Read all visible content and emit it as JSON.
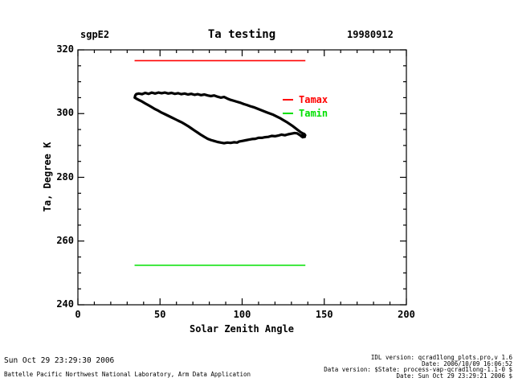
{
  "header": {
    "site": "sgpE2",
    "title": "Ta testing",
    "date": "19980912"
  },
  "legend": {
    "items": [
      {
        "label": "Tamax",
        "color": "#ff0000"
      },
      {
        "label": "Tamin",
        "color": "#00e000"
      }
    ]
  },
  "chart_data": {
    "type": "line",
    "title": "Ta testing",
    "xlabel": "Solar Zenith Angle",
    "ylabel": "Ta, Degree K",
    "xlim": [
      0,
      200
    ],
    "ylim": [
      240,
      320
    ],
    "x_axis": {
      "min": 0,
      "max": 200,
      "major_step": 50,
      "minor_step": 10
    },
    "y_axis": {
      "min": 240,
      "max": 320,
      "major_step": 20,
      "minor_step": 5
    },
    "grid": false,
    "legend_position": "inside-right",
    "series": [
      {
        "name": "Ta",
        "color": "#000000",
        "line_width": 3.2,
        "points": [
          [
            34.6,
            305.0
          ],
          [
            34.9,
            305.7
          ],
          [
            35.5,
            306.1
          ],
          [
            37,
            306.3
          ],
          [
            39,
            306.1
          ],
          [
            41,
            306.5
          ],
          [
            43,
            306.2
          ],
          [
            45,
            306.6
          ],
          [
            47,
            306.3
          ],
          [
            49,
            306.6
          ],
          [
            51,
            306.4
          ],
          [
            53,
            306.6
          ],
          [
            55,
            306.3
          ],
          [
            57,
            306.5
          ],
          [
            59,
            306.2
          ],
          [
            61,
            306.4
          ],
          [
            63,
            306.1
          ],
          [
            65,
            306.3
          ],
          [
            67,
            306.0
          ],
          [
            69,
            306.2
          ],
          [
            71,
            305.9
          ],
          [
            73,
            306.1
          ],
          [
            75,
            305.8
          ],
          [
            77,
            306.0
          ],
          [
            79,
            305.7
          ],
          [
            81,
            305.5
          ],
          [
            83,
            305.7
          ],
          [
            85,
            305.3
          ],
          [
            87,
            305.0
          ],
          [
            89,
            305.2
          ],
          [
            91,
            304.7
          ],
          [
            93,
            304.3
          ],
          [
            95,
            304.0
          ],
          [
            97,
            303.7
          ],
          [
            99,
            303.4
          ],
          [
            101,
            303.0
          ],
          [
            103,
            302.7
          ],
          [
            105,
            302.3
          ],
          [
            107,
            302.0
          ],
          [
            109,
            301.6
          ],
          [
            111,
            301.2
          ],
          [
            113,
            300.8
          ],
          [
            115,
            300.4
          ],
          [
            117,
            300.0
          ],
          [
            119,
            299.6
          ],
          [
            121,
            299.1
          ],
          [
            123,
            298.6
          ],
          [
            125,
            298.0
          ],
          [
            127,
            297.4
          ],
          [
            129,
            296.7
          ],
          [
            131,
            296.0
          ],
          [
            133,
            295.2
          ],
          [
            134.5,
            294.6
          ],
          [
            135.8,
            294.1
          ],
          [
            136.8,
            293.8
          ],
          [
            137.8,
            293.6
          ],
          [
            138.4,
            293.2
          ],
          [
            137.9,
            292.8
          ],
          [
            136.9,
            292.6
          ],
          [
            136.0,
            292.9
          ],
          [
            136.9,
            293.3
          ],
          [
            137.7,
            293.0
          ],
          [
            138.1,
            292.7
          ],
          [
            136.5,
            292.8
          ],
          [
            135,
            293.3
          ],
          [
            133.5,
            293.8
          ],
          [
            132,
            293.9
          ],
          [
            130,
            293.7
          ],
          [
            128,
            293.5
          ],
          [
            126,
            293.2
          ],
          [
            124,
            293.4
          ],
          [
            122,
            293.1
          ],
          [
            120,
            292.9
          ],
          [
            118,
            293.0
          ],
          [
            116,
            292.7
          ],
          [
            114,
            292.6
          ],
          [
            112,
            292.4
          ],
          [
            110,
            292.4
          ],
          [
            108,
            292.1
          ],
          [
            106,
            292.0
          ],
          [
            104,
            291.8
          ],
          [
            102,
            291.6
          ],
          [
            100,
            291.4
          ],
          [
            98,
            291.2
          ],
          [
            97,
            290.9
          ],
          [
            95,
            291.0
          ],
          [
            93,
            290.8
          ],
          [
            91,
            290.9
          ],
          [
            89,
            290.7
          ],
          [
            87,
            290.9
          ],
          [
            85,
            291.1
          ],
          [
            83,
            291.4
          ],
          [
            81,
            291.7
          ],
          [
            79,
            292.1
          ],
          [
            77,
            292.7
          ],
          [
            75,
            293.3
          ],
          [
            73,
            294.0
          ],
          [
            71,
            294.7
          ],
          [
            69,
            295.4
          ],
          [
            67,
            296.1
          ],
          [
            65,
            296.7
          ],
          [
            63,
            297.3
          ],
          [
            61,
            297.8
          ],
          [
            59,
            298.3
          ],
          [
            57,
            298.8
          ],
          [
            55,
            299.3
          ],
          [
            53,
            299.8
          ],
          [
            51,
            300.3
          ],
          [
            49,
            300.9
          ],
          [
            47,
            301.4
          ],
          [
            45,
            302.0
          ],
          [
            43,
            302.6
          ],
          [
            41,
            303.2
          ],
          [
            39,
            303.8
          ],
          [
            37,
            304.3
          ],
          [
            35.5,
            304.7
          ],
          [
            34.6,
            305.0
          ]
        ]
      },
      {
        "name": "Tamax",
        "type": "hline",
        "color": "#ff0000",
        "line_width": 1.6,
        "y": 316.6,
        "x_range": [
          34.5,
          138.5
        ]
      },
      {
        "name": "Tamin",
        "type": "hline",
        "color": "#00e000",
        "line_width": 1.6,
        "y": 252.4,
        "x_range": [
          34.5,
          138.5
        ]
      }
    ]
  },
  "footer": {
    "left_line1": "Sun Oct 29 23:29:30 2006",
    "left_line2": "Battelle Pacific Northwest National Laboratory, Arm Data Application",
    "right_lines": [
      "IDL version: qcrad1long_plots.pro,v 1.6",
      "Date: 2006/10/09 16:06:52",
      "Data version: $State: process-vap-qcrad1long-1.1-0 $",
      "Date: Sun Oct 29 23:29:21 2006 $"
    ]
  }
}
